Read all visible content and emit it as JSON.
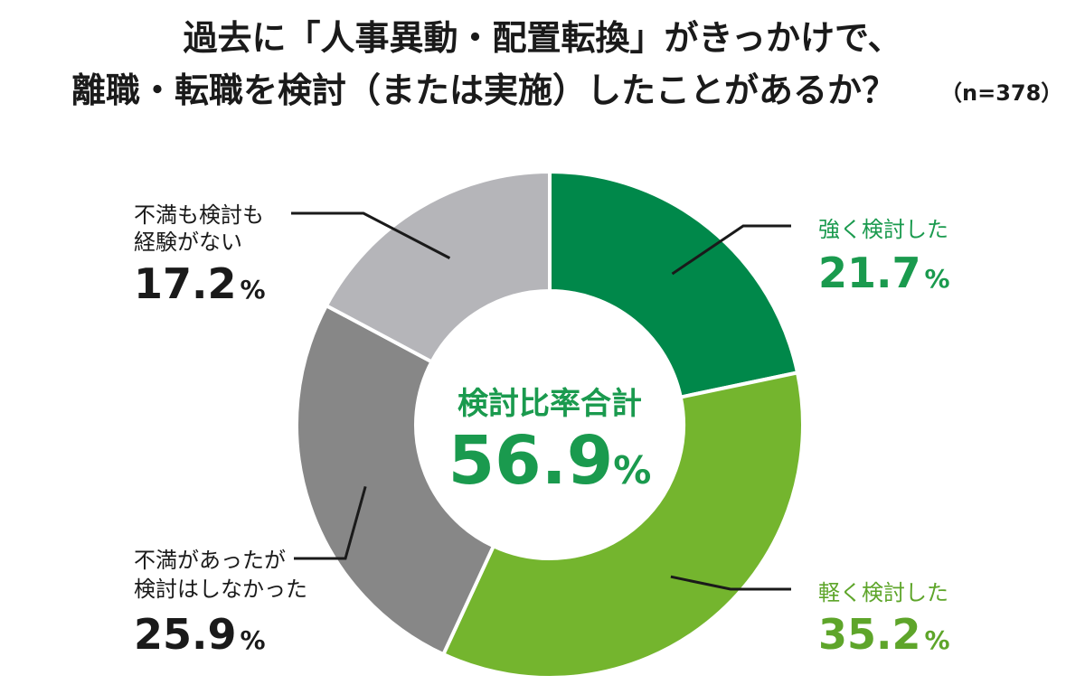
{
  "chart_data": {
    "type": "pie",
    "title_lines": [
      "過去に「人事異動・配置転換」がきっかけで、",
      "離職・転職を検討（または実施）したことがあるか？"
    ],
    "sample_size": "（n=378）",
    "unit": "%",
    "center": {
      "label": "検討比率合計",
      "value": 56.9
    },
    "slices": [
      {
        "label_lines": [
          "強く検討した"
        ],
        "value": 21.7,
        "color": "#00884a",
        "text_color": "#1a9a4e"
      },
      {
        "label_lines": [
          "軽く検討した"
        ],
        "value": 35.2,
        "color": "#74b52e",
        "text_color": "#5ea52a"
      },
      {
        "label_lines": [
          "不満があったが",
          "検討はしなかった"
        ],
        "value": 25.9,
        "color": "#878787",
        "text_color": "#1a1a1a"
      },
      {
        "label_lines": [
          "不満も検討も",
          "経験がない"
        ],
        "value": 17.2,
        "color": "#b5b5b9",
        "text_color": "#1a1a1a"
      }
    ],
    "colors": {
      "title": "#1a1a1a",
      "center_text": "#1a9a4e",
      "leader_line": "#1a1a1a",
      "separator": "#ffffff"
    }
  }
}
